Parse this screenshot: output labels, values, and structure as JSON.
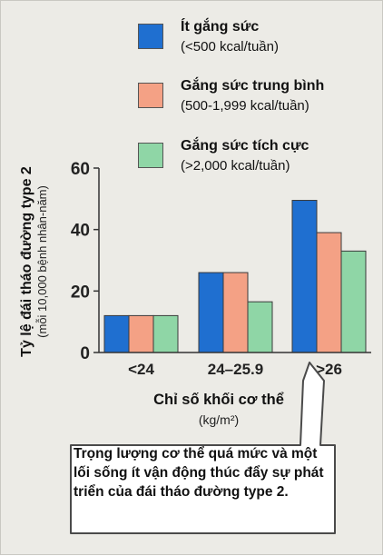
{
  "chart_data": {
    "type": "bar",
    "categories": [
      "<24",
      "24–25.9",
      ">26"
    ],
    "series": [
      {
        "name": "Ít gắng sức",
        "sublabel": "(<500 kcal/tuần)",
        "color": "#1f6fd0",
        "values": [
          12,
          26,
          49.5
        ]
      },
      {
        "name": "Gắng sức trung bình",
        "sublabel": "(500-1,999 kcal/tuần)",
        "color": "#f4a185",
        "values": [
          12,
          26,
          39
        ]
      },
      {
        "name": "Gắng sức tích cực",
        "sublabel": "(>2,000 kcal/tuần)",
        "color": "#8fd6a6",
        "values": [
          12,
          16.5,
          33
        ]
      }
    ],
    "yticks": [
      0,
      20,
      40,
      60
    ],
    "ylim": [
      0,
      60
    ],
    "ylabel": "Tỷ lệ đái tháo đường type 2",
    "ylabel_sub": "(mỗi 10,000 bệnh nhân-năm)",
    "xlabel": "Chỉ số khối cơ thể",
    "xlabel_unit": "(kg/m²)",
    "legend_placement": "top",
    "grid": false
  },
  "callout": {
    "text": "Trọng lượng cơ thể quá mức và một lối sống ít vận động thúc đẩy sự phát triển của đái tháo đường type 2."
  }
}
